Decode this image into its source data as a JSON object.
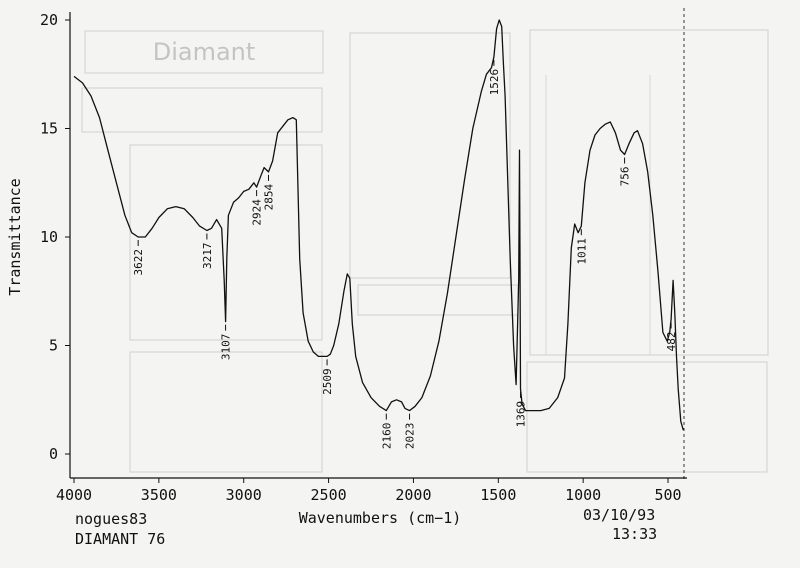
{
  "chart_data": {
    "type": "line",
    "xlabel": "Wavenumbers (cm−1)",
    "ylabel": "Transmittance",
    "xlim": [
      4000,
      400
    ],
    "ylim": [
      0,
      20
    ],
    "x_reversed": true,
    "x_ticks": [
      4000,
      3500,
      3000,
      2500,
      2000,
      1500,
      1000,
      500
    ],
    "x_tick_labels": [
      "4000",
      "3500",
      "3000",
      "2500",
      "2000",
      "1500",
      "1000",
      "500"
    ],
    "y_ticks": [
      0,
      5,
      10,
      15,
      20
    ],
    "y_tick_labels": [
      "0",
      "5",
      "10",
      "15",
      "20"
    ],
    "grid": false,
    "series": [
      {
        "points": [
          [
            4000,
            17.4
          ],
          [
            3950,
            17.1
          ],
          [
            3900,
            16.5
          ],
          [
            3850,
            15.5
          ],
          [
            3800,
            14.0
          ],
          [
            3750,
            12.5
          ],
          [
            3700,
            11.0
          ],
          [
            3660,
            10.2
          ],
          [
            3622,
            10.0
          ],
          [
            3580,
            10.0
          ],
          [
            3540,
            10.4
          ],
          [
            3500,
            10.9
          ],
          [
            3450,
            11.3
          ],
          [
            3400,
            11.4
          ],
          [
            3350,
            11.3
          ],
          [
            3300,
            10.9
          ],
          [
            3260,
            10.5
          ],
          [
            3217,
            10.3
          ],
          [
            3190,
            10.4
          ],
          [
            3160,
            10.8
          ],
          [
            3130,
            10.4
          ],
          [
            3115,
            8.0
          ],
          [
            3107,
            6.1
          ],
          [
            3100,
            9.0
          ],
          [
            3090,
            11.0
          ],
          [
            3060,
            11.6
          ],
          [
            3030,
            11.8
          ],
          [
            3000,
            12.1
          ],
          [
            2970,
            12.2
          ],
          [
            2940,
            12.5
          ],
          [
            2924,
            12.3
          ],
          [
            2900,
            12.8
          ],
          [
            2880,
            13.2
          ],
          [
            2854,
            13.0
          ],
          [
            2830,
            13.5
          ],
          [
            2800,
            14.8
          ],
          [
            2770,
            15.1
          ],
          [
            2740,
            15.4
          ],
          [
            2710,
            15.5
          ],
          [
            2690,
            15.4
          ],
          [
            2670,
            9.0
          ],
          [
            2650,
            6.5
          ],
          [
            2620,
            5.2
          ],
          [
            2590,
            4.7
          ],
          [
            2560,
            4.5
          ],
          [
            2530,
            4.5
          ],
          [
            2509,
            4.5
          ],
          [
            2490,
            4.6
          ],
          [
            2470,
            5.0
          ],
          [
            2440,
            6.0
          ],
          [
            2410,
            7.5
          ],
          [
            2390,
            8.3
          ],
          [
            2375,
            8.1
          ],
          [
            2360,
            6.0
          ],
          [
            2340,
            4.5
          ],
          [
            2300,
            3.3
          ],
          [
            2250,
            2.6
          ],
          [
            2200,
            2.2
          ],
          [
            2160,
            2.0
          ],
          [
            2130,
            2.4
          ],
          [
            2100,
            2.5
          ],
          [
            2070,
            2.4
          ],
          [
            2050,
            2.1
          ],
          [
            2023,
            2.0
          ],
          [
            1990,
            2.2
          ],
          [
            1950,
            2.6
          ],
          [
            1900,
            3.6
          ],
          [
            1850,
            5.2
          ],
          [
            1800,
            7.4
          ],
          [
            1750,
            10.0
          ],
          [
            1700,
            12.6
          ],
          [
            1650,
            15.0
          ],
          [
            1600,
            16.7
          ],
          [
            1570,
            17.5
          ],
          [
            1540,
            17.8
          ],
          [
            1526,
            18.3
          ],
          [
            1510,
            19.6
          ],
          [
            1495,
            20.0
          ],
          [
            1480,
            19.7
          ],
          [
            1470,
            18.0
          ],
          [
            1460,
            16.5
          ],
          [
            1450,
            14.0
          ],
          [
            1430,
            9.0
          ],
          [
            1410,
            5.0
          ],
          [
            1395,
            3.2
          ],
          [
            1380,
            8.0
          ],
          [
            1375,
            14.0
          ],
          [
            1372,
            9.0
          ],
          [
            1369,
            3.0
          ],
          [
            1360,
            2.3
          ],
          [
            1340,
            2.0
          ],
          [
            1300,
            2.0
          ],
          [
            1250,
            2.0
          ],
          [
            1200,
            2.1
          ],
          [
            1150,
            2.6
          ],
          [
            1110,
            3.5
          ],
          [
            1090,
            6.0
          ],
          [
            1070,
            9.5
          ],
          [
            1050,
            10.6
          ],
          [
            1030,
            10.2
          ],
          [
            1011,
            10.5
          ],
          [
            990,
            12.5
          ],
          [
            960,
            14.0
          ],
          [
            930,
            14.7
          ],
          [
            900,
            15.0
          ],
          [
            870,
            15.2
          ],
          [
            840,
            15.3
          ],
          [
            810,
            14.8
          ],
          [
            780,
            14.0
          ],
          [
            756,
            13.8
          ],
          [
            730,
            14.3
          ],
          [
            700,
            14.8
          ],
          [
            680,
            14.9
          ],
          [
            650,
            14.3
          ],
          [
            620,
            13.0
          ],
          [
            590,
            11.0
          ],
          [
            560,
            8.5
          ],
          [
            530,
            5.6
          ],
          [
            505,
            5.2
          ],
          [
            490,
            5.6
          ],
          [
            482,
            6.2
          ],
          [
            470,
            8.0
          ],
          [
            460,
            6.5
          ],
          [
            450,
            4.5
          ],
          [
            440,
            3.0
          ],
          [
            425,
            1.5
          ],
          [
            410,
            1.1
          ]
        ]
      }
    ],
    "annotations": [
      {
        "label": "3622",
        "x": 3622,
        "y": 10.0,
        "placement": "below"
      },
      {
        "label": "3217",
        "x": 3217,
        "y": 10.3,
        "placement": "below"
      },
      {
        "label": "3107",
        "x": 3107,
        "y": 6.1,
        "placement": "below"
      },
      {
        "label": "2924",
        "x": 2924,
        "y": 12.3,
        "placement": "below"
      },
      {
        "label": "2854",
        "x": 2854,
        "y": 13.0,
        "placement": "below"
      },
      {
        "label": "2509",
        "x": 2509,
        "y": 4.5,
        "placement": "below"
      },
      {
        "label": "2160",
        "x": 2160,
        "y": 2.0,
        "placement": "below"
      },
      {
        "label": "2023",
        "x": 2023,
        "y": 2.0,
        "placement": "below"
      },
      {
        "label": "1526",
        "x": 1526,
        "y": 18.3,
        "placement": "below"
      },
      {
        "label": "1369",
        "x": 1369,
        "y": 3.0,
        "placement": "below"
      },
      {
        "label": "1011",
        "x": 1011,
        "y": 10.5,
        "placement": "below"
      },
      {
        "label": "756",
        "x": 756,
        "y": 13.8,
        "placement": "below"
      },
      {
        "label": "482",
        "x": 482,
        "y": 6.2,
        "placement": "below"
      }
    ]
  },
  "footer": {
    "sample_id": "nogues83",
    "sample_name": "DIAMANT 76",
    "date": "03/10/93",
    "time": "13:33"
  },
  "background_form": {
    "title": "Diamant"
  }
}
